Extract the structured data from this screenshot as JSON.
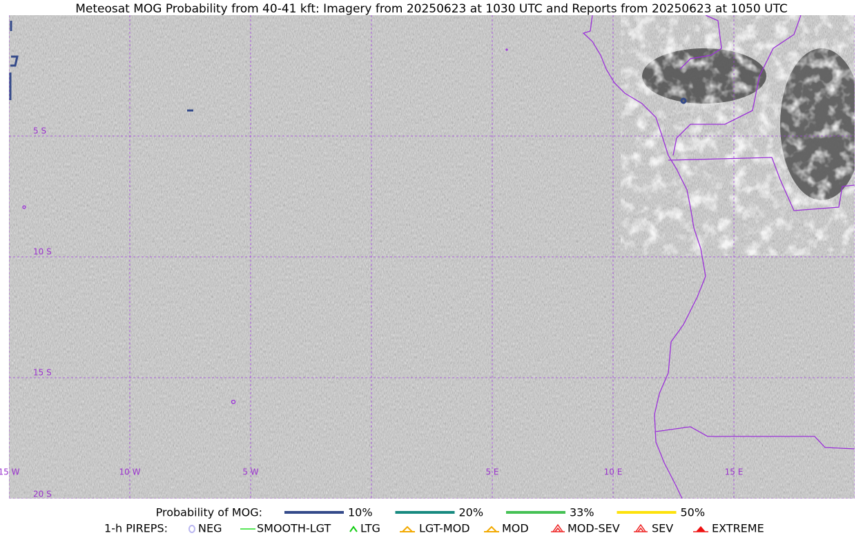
{
  "title": "Meteosat MOG Probability from 40-41 kft: Imagery from 20250623 at 1030 UTC and Reports from 20250623 at 1050 UTC",
  "grid_labels": {
    "longitude": [
      "15 W",
      "10 W",
      "5 W",
      "5 E",
      "10 E",
      "15 E"
    ],
    "latitude": [
      "5 S",
      "10 S",
      "15 S",
      "20 S"
    ]
  },
  "probability_legend": {
    "label": "Probability of MOG:",
    "items": [
      {
        "label": "10%",
        "color": "#344a8a"
      },
      {
        "label": "20%",
        "color": "#178a80"
      },
      {
        "label": "33%",
        "color": "#45c154"
      },
      {
        "label": "50%",
        "color": "#fde20c"
      }
    ]
  },
  "pirep_legend": {
    "label": "1-h PIREPS:",
    "items": [
      {
        "label": "NEG",
        "color": "#b9b6f0"
      },
      {
        "label": "SMOOTH-LGT",
        "color": "#22dd22"
      },
      {
        "label": "LTG",
        "color": "#11cc11"
      },
      {
        "label": "LGT-MOD",
        "color": "#f2a900"
      },
      {
        "label": "MOD",
        "color": "#f2a900"
      },
      {
        "label": "MOD-SEV",
        "color": "#ee2222"
      },
      {
        "label": "SEV",
        "color": "#ee2222"
      },
      {
        "label": "EXTREME",
        "color": "#ee1111"
      }
    ]
  }
}
